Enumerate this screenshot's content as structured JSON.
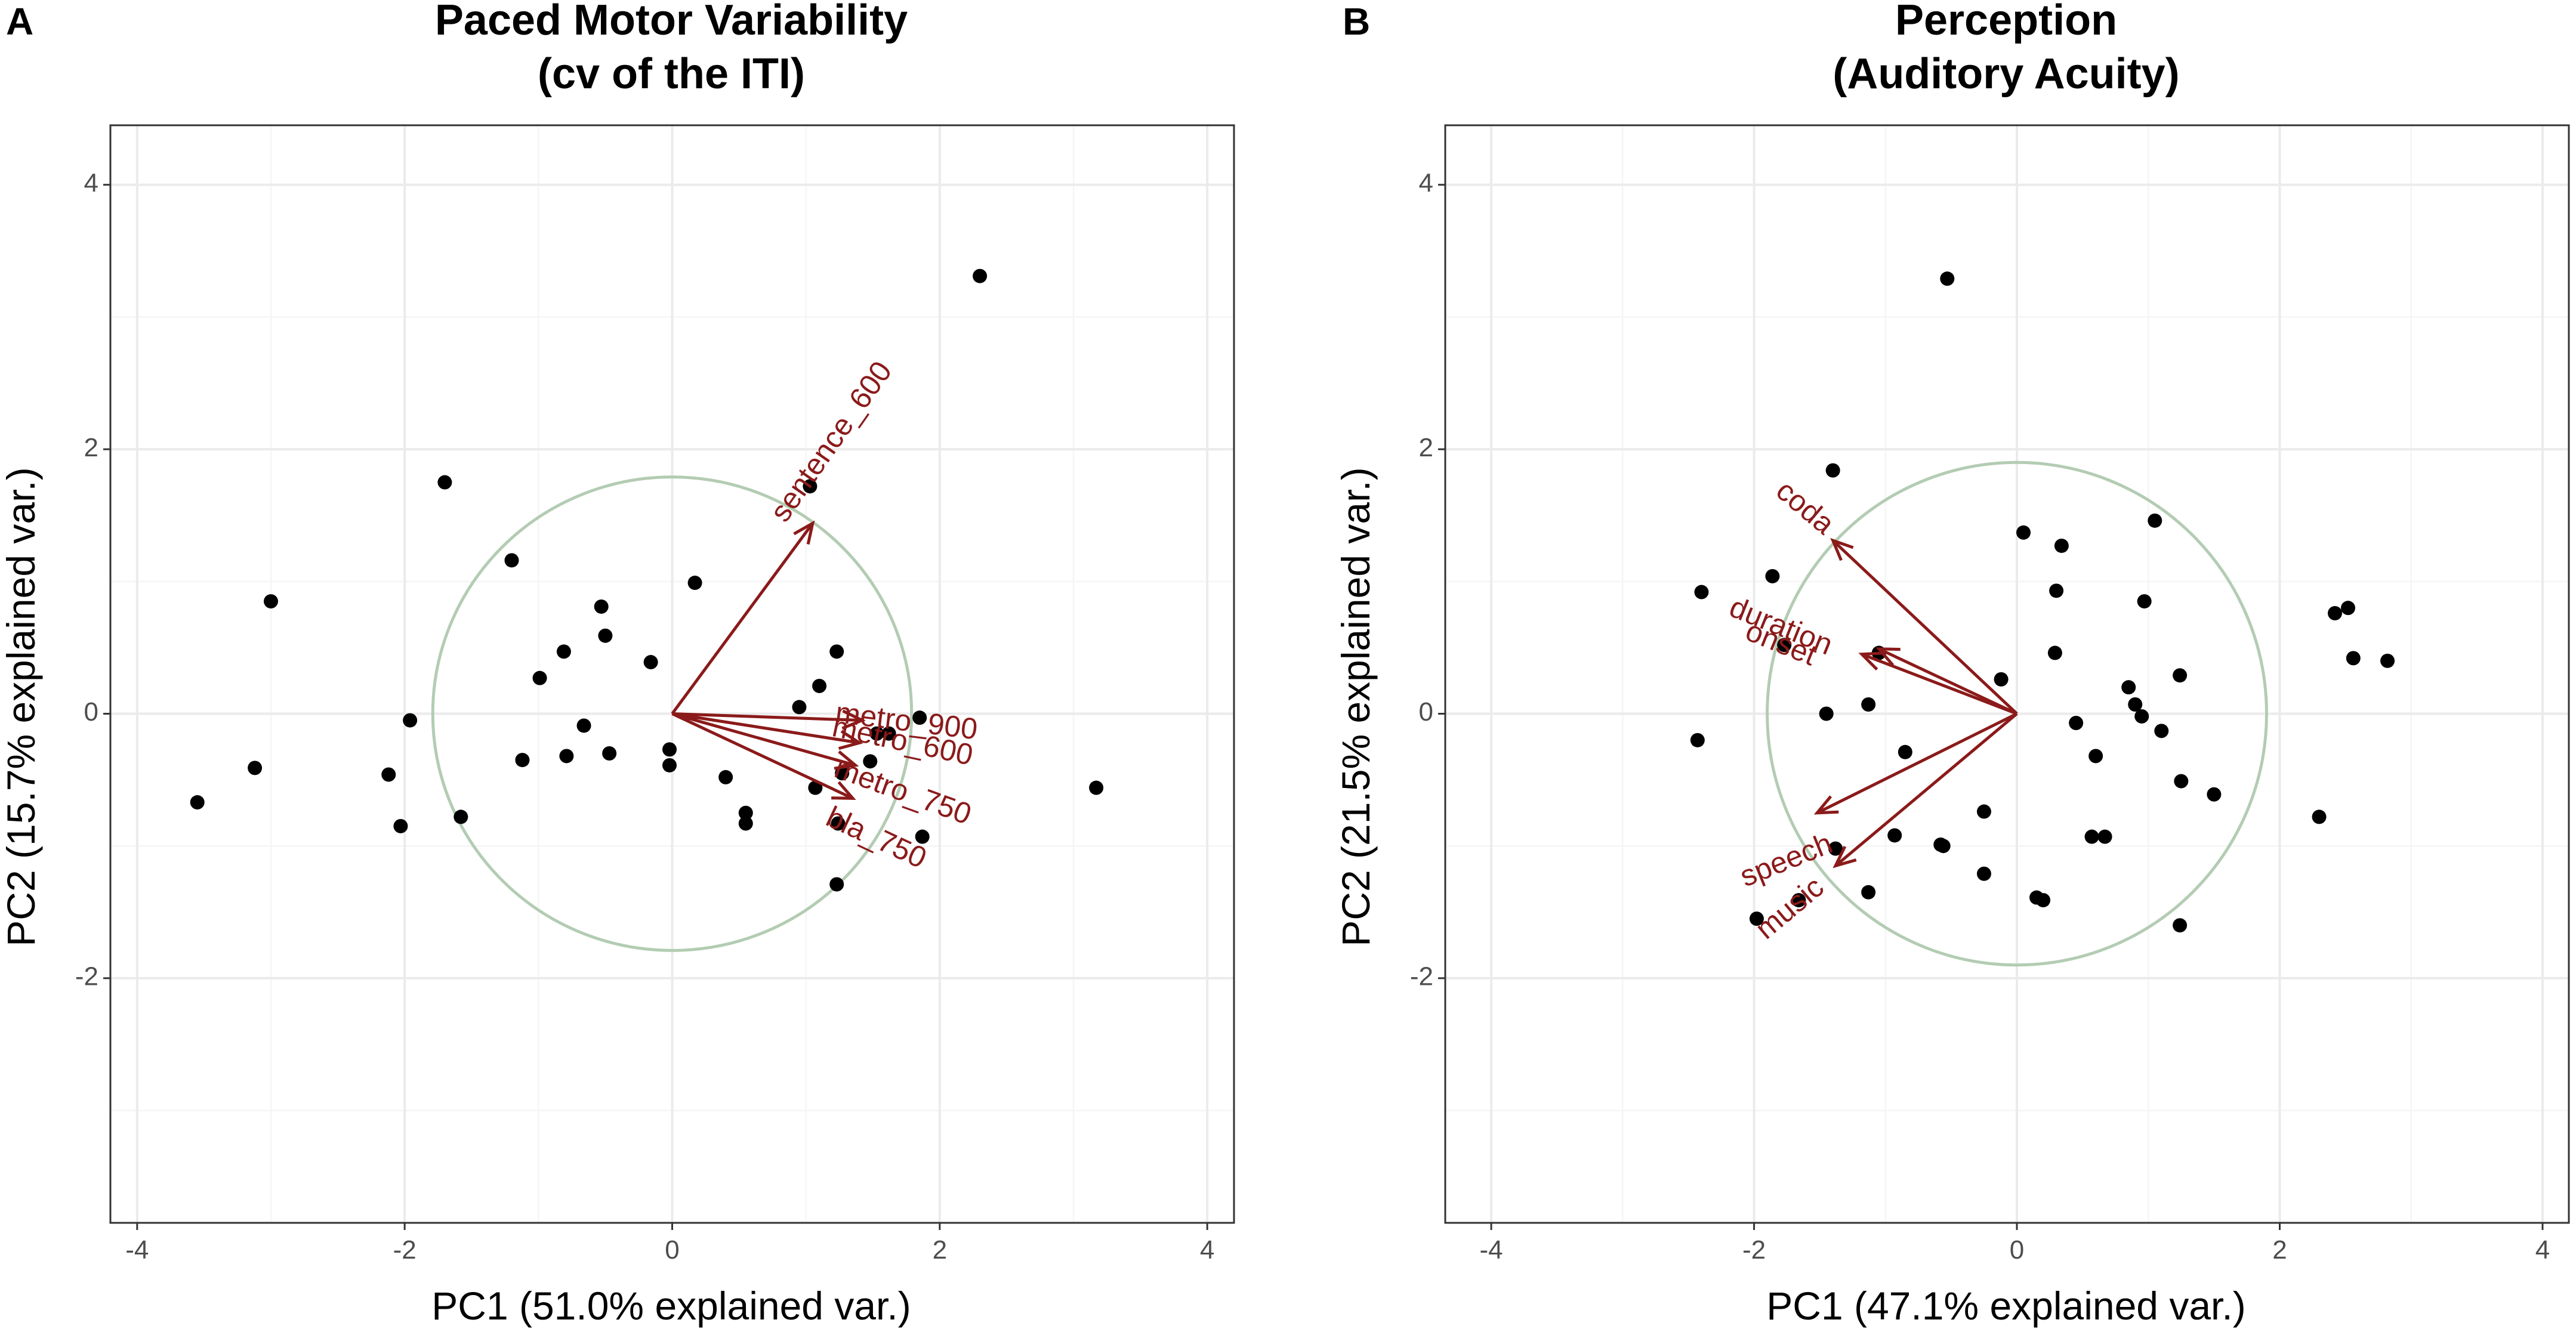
{
  "chart_data": [
    {
      "type": "scatter",
      "panel_letter": "A",
      "title_line1": "Paced Motor Variability",
      "title_line2": "(cv of the ITI)",
      "xlabel": "PC1 (51.0% explained var.)",
      "ylabel": "PC2 (15.7% explained var.)",
      "xlim": [
        -4.2,
        4.2
      ],
      "ylim": [
        -3.85,
        4.45
      ],
      "xticks": [
        -4,
        -2,
        0,
        2,
        4
      ],
      "yticks": [
        -2,
        0,
        2,
        4
      ],
      "xtick_labels": [
        "-4",
        "-2",
        "0",
        "2",
        "4"
      ],
      "ytick_labels": [
        "-2",
        "0",
        "2",
        "4"
      ],
      "circle_radius": 1.79,
      "colors": {
        "arrow": "#8b1a1a",
        "circle": "#b3ccb3",
        "point": "#000000"
      },
      "arrows": [
        {
          "label": "sentence_600",
          "x": 1.05,
          "y": 1.44,
          "label_x": 1.2,
          "label_y": 2.05,
          "label_angle": -55
        },
        {
          "label": "metro_900",
          "x": 1.42,
          "y": -0.05,
          "label_x": 1.75,
          "label_y": -0.07,
          "label_angle": 7
        },
        {
          "label": "metro_600",
          "x": 1.4,
          "y": -0.22,
          "label_x": 1.72,
          "label_y": -0.22,
          "label_angle": 12
        },
        {
          "label": "metro_750",
          "x": 1.37,
          "y": -0.39,
          "label_x": 1.72,
          "label_y": -0.6,
          "label_angle": 20
        },
        {
          "label": "bla_750",
          "x": 1.35,
          "y": -0.64,
          "label_x": 1.52,
          "label_y": -0.95,
          "label_angle": 25
        }
      ],
      "points": {
        "x": [
          2.3,
          1.03,
          -1.7,
          -1.2,
          0.17,
          -3.0,
          -0.53,
          -0.5,
          -0.81,
          -0.16,
          -0.99,
          -0.66,
          -0.79,
          -0.47,
          -0.02,
          -0.02,
          -1.96,
          -1.12,
          1.23,
          1.1,
          0.95,
          1.53,
          1.62,
          1.48,
          1.85,
          -2.12,
          -3.12,
          -3.55,
          -2.03,
          -1.58,
          0.4,
          0.55,
          0.55,
          1.07,
          1.27,
          1.24,
          1.87,
          1.23,
          3.17
        ],
        "y": [
          3.31,
          1.72,
          1.75,
          1.16,
          0.99,
          0.85,
          0.81,
          0.59,
          0.47,
          0.39,
          0.27,
          -0.09,
          -0.32,
          -0.3,
          -0.27,
          -0.39,
          -0.05,
          -0.35,
          0.47,
          0.21,
          0.05,
          -0.15,
          -0.15,
          -0.36,
          -0.03,
          -0.46,
          -0.41,
          -0.67,
          -0.85,
          -0.78,
          -0.48,
          -0.75,
          -0.83,
          -0.56,
          -0.45,
          -0.83,
          -0.93,
          -1.29,
          -0.56
        ]
      }
    },
    {
      "type": "scatter",
      "panel_letter": "B",
      "title_line1": "Perception",
      "title_line2": "(Auditory Acuity)",
      "xlabel": "PC1 (47.1% explained var.)",
      "ylabel": "PC2 (21.5% explained var.)",
      "xlim": [
        -4.35,
        4.2
      ],
      "ylim": [
        -3.85,
        4.45
      ],
      "xticks": [
        -4,
        -2,
        0,
        2,
        4
      ],
      "yticks": [
        -2,
        0,
        2,
        4
      ],
      "xtick_labels": [
        "-4",
        "-2",
        "0",
        "2",
        "4"
      ],
      "ytick_labels": [
        "-2",
        "0",
        "2",
        "4"
      ],
      "circle_radius": 1.9,
      "colors": {
        "arrow": "#8b1a1a",
        "circle": "#b3ccb3",
        "point": "#000000"
      },
      "arrows": [
        {
          "label": "coda",
          "x": -1.4,
          "y": 1.31,
          "label_x": -1.62,
          "label_y": 1.55,
          "label_angle": 40
        },
        {
          "label": "duration",
          "x": -1.05,
          "y": 0.49,
          "label_x": -1.8,
          "label_y": 0.65,
          "label_angle": 22
        },
        {
          "label": "onset",
          "x": -1.18,
          "y": 0.45,
          "label_x": -1.8,
          "label_y": 0.52,
          "label_angle": 22
        },
        {
          "label": "speech",
          "x": -1.52,
          "y": -0.75,
          "label_x": -1.75,
          "label_y": -1.12,
          "label_angle": -22
        },
        {
          "label": "music",
          "x": -1.38,
          "y": -1.15,
          "label_x": -1.72,
          "label_y": -1.48,
          "label_angle": -40
        }
      ],
      "points": {
        "x": [
          -0.53,
          -1.4,
          1.05,
          0.05,
          0.34,
          -1.86,
          0.3,
          -2.4,
          0.97,
          2.52,
          2.42,
          -1.77,
          -1.05,
          0.29,
          2.56,
          2.82,
          1.24,
          -0.12,
          0.85,
          0.9,
          -1.13,
          -1.45,
          0.45,
          0.95,
          1.1,
          -2.43,
          0.6,
          -0.85,
          1.25,
          1.5,
          -0.25,
          2.3,
          -0.56,
          0.57,
          0.67,
          -1.38,
          -0.93,
          -0.58,
          -0.25,
          -1.13,
          0.15,
          0.2,
          -1.66,
          -1.98,
          1.24
        ],
        "y": [
          3.29,
          1.84,
          1.46,
          1.37,
          1.27,
          1.04,
          0.93,
          0.92,
          0.85,
          0.8,
          0.76,
          0.52,
          0.46,
          0.46,
          0.42,
          0.4,
          0.29,
          0.26,
          0.2,
          0.07,
          0.07,
          0.0,
          -0.07,
          -0.02,
          -0.13,
          -0.2,
          -0.32,
          -0.29,
          -0.51,
          -0.61,
          -0.74,
          -0.78,
          -1.0,
          -0.93,
          -0.93,
          -1.02,
          -0.92,
          -0.99,
          -1.21,
          -1.35,
          -1.39,
          -1.41,
          -1.41,
          -1.55,
          -1.6
        ]
      }
    }
  ]
}
